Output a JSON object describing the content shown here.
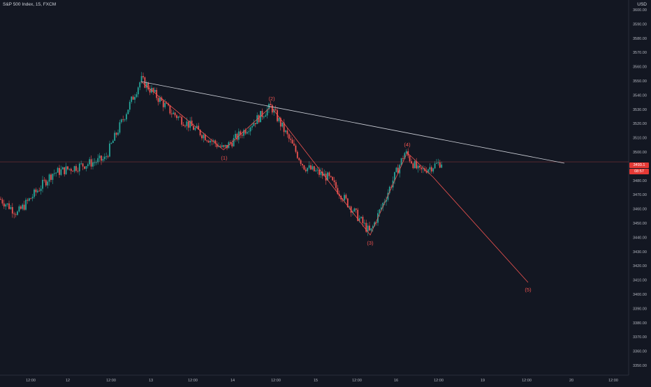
{
  "header": {
    "title": "S&P 500 Index, 15, FXCM",
    "currency": "USD"
  },
  "price_axis": {
    "labels": [
      "3600.00",
      "3590.00",
      "3580.00",
      "3570.00",
      "3560.00",
      "3550.00",
      "3540.00",
      "3530.00",
      "3520.00",
      "3510.00",
      "3500.00",
      "3490.00",
      "3480.00",
      "3470.00",
      "3460.00",
      "3450.00",
      "3440.00",
      "3430.00",
      "3420.00",
      "3410.00",
      "3400.00",
      "3390.00",
      "3380.00",
      "3370.00",
      "3360.00",
      "3350.00"
    ]
  },
  "time_axis": {
    "labels": [
      "12:00",
      "12",
      "12:00",
      "13",
      "12:00",
      "14",
      "12:00",
      "15",
      "12:00",
      "16",
      "12:00",
      "19",
      "12:00",
      "20",
      "12:00"
    ]
  },
  "current_price": {
    "badge_top": "3493.1",
    "badge_bottom": "08:57"
  },
  "wave_labels": [
    "(1)",
    "(2)",
    "(3)",
    "(4)",
    "(5)"
  ],
  "colors": {
    "background": "#131722",
    "up_candle": "#26a69a",
    "down_candle": "#ef5350",
    "wave_line": "#ef5350",
    "trend_line": "#d1d4dc",
    "price_line": "#ef5350",
    "axis_text": "#b2b5be"
  },
  "chart_data": {
    "type": "candlestick",
    "symbol": "S&P 500 Index",
    "interval": "15",
    "source": "FXCM",
    "y_range": [
      3347,
      3603
    ],
    "price_key_points": [
      {
        "x": "start",
        "price": 3467
      },
      {
        "x": "low-1",
        "price": 3457
      },
      {
        "x": "rise",
        "price": 3485
      },
      {
        "x": "peak",
        "price": 3551
      },
      {
        "x": "(1)",
        "price": 3502
      },
      {
        "x": "(2)",
        "price": 3532
      },
      {
        "x": "(3)",
        "price": 3443
      },
      {
        "x": "(4)",
        "price": 3500
      },
      {
        "x": "last",
        "price": 3493
      },
      {
        "x": "(5) projection",
        "price": 3407
      }
    ],
    "current_price": 3493.1,
    "elliott_wave_labels": [
      "(1)",
      "(2)",
      "(3)",
      "(4)",
      "(5)"
    ],
    "trend_line": {
      "from_price": 3551,
      "to_price": 3492
    }
  }
}
